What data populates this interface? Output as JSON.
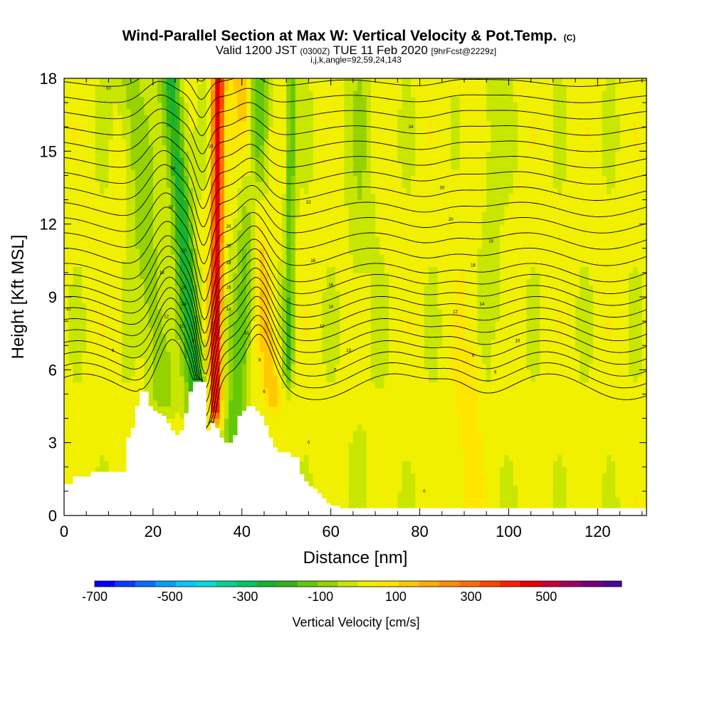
{
  "chart_data": {
    "type": "heatmap",
    "title": "Wind-Parallel Section at Max W: Vertical Velocity & Pot.Temp.",
    "title_suffix": "(C)",
    "subtitle_parts": [
      "Valid 1200 JST ",
      "(0300Z)",
      " TUE 11 Feb 2020 ",
      "[9hrFcst@2229z]"
    ],
    "subtitle2": "i,j,k,angle=92,59,24,143",
    "xlabel": "Distance [nm]",
    "ylabel": "Height [Kft MSL]",
    "xlim": [
      0,
      131
    ],
    "ylim": [
      0,
      18
    ],
    "xticks": [
      0,
      20,
      40,
      60,
      80,
      100,
      120
    ],
    "yticks": [
      0,
      3,
      6,
      9,
      12,
      15,
      18
    ],
    "colorbar": {
      "label": "Vertical Velocity [cm/s]",
      "min": -700,
      "max": 700,
      "tick_values": [
        -700,
        -500,
        -300,
        -100,
        100,
        300,
        500
      ],
      "colors": [
        "#0000ff",
        "#0a3cff",
        "#0a6eff",
        "#00a0ff",
        "#00c8ff",
        "#00dcdc",
        "#00d296",
        "#00c864",
        "#14b432",
        "#32b414",
        "#64c80a",
        "#96d200",
        "#c8e600",
        "#f0f000",
        "#ffe600",
        "#ffc800",
        "#ffaa00",
        "#ff8c00",
        "#ff6e00",
        "#ff4600",
        "#ff1e00",
        "#e60000",
        "#c8003c",
        "#a00064",
        "#780078",
        "#500096"
      ]
    },
    "velocity_features": [
      {
        "x": 34,
        "y_bottom": 4.5,
        "y_top": 18,
        "lean": 0.05,
        "half_width": 1.3,
        "value": 450
      },
      {
        "x": 30,
        "y_bottom": 4.5,
        "y_top": 18,
        "lean": -0.45,
        "half_width": 2.2,
        "value": -270
      },
      {
        "x": 47,
        "y_bottom": 5,
        "y_top": 18,
        "lean": -0.55,
        "half_width": 1.9,
        "value": 140
      },
      {
        "x": 38,
        "y_bottom": 2.5,
        "y_top": 18,
        "lean": 0.4,
        "half_width": 2.5,
        "value": -160
      },
      {
        "x": 50.5,
        "y_bottom": 6,
        "y_top": 18,
        "lean": 0.05,
        "half_width": 1.1,
        "value": -170
      },
      {
        "x": 22,
        "y_bottom": 5,
        "y_top": 18,
        "lean": -0.55,
        "half_width": 3,
        "value": -120
      }
    ],
    "terrain_x": [
      0,
      1,
      2,
      3,
      4,
      5,
      6,
      7,
      8,
      9,
      10,
      11,
      12,
      13,
      14,
      15,
      16,
      17,
      18,
      19,
      20,
      21,
      22,
      23,
      24,
      25,
      26,
      27,
      28,
      29,
      30,
      31,
      32,
      33,
      34,
      35,
      36,
      37,
      38,
      39,
      40,
      41,
      42,
      43,
      44,
      45,
      46,
      47,
      48,
      49,
      50,
      51,
      52,
      53,
      54,
      55,
      56,
      57,
      58,
      59,
      60,
      61,
      62,
      63,
      64,
      131
    ],
    "terrain_y": [
      1.3,
      1.3,
      1.6,
      1.6,
      1.6,
      1.6,
      1.8,
      1.8,
      1.8,
      1.8,
      1.8,
      1.8,
      1.8,
      1.8,
      3.2,
      3.6,
      4.5,
      5.1,
      5.1,
      4.5,
      4.3,
      4.2,
      4.1,
      3.8,
      3.5,
      3.3,
      3.5,
      4.2,
      5.1,
      5.5,
      5.5,
      5.5,
      3.5,
      3.8,
      3.6,
      3.2,
      3.0,
      3.0,
      3.3,
      4.1,
      4.3,
      4.5,
      4.5,
      4.3,
      4.1,
      3.7,
      3.2,
      2.8,
      2.6,
      2.6,
      2.6,
      2.4,
      2.4,
      1.7,
      1.4,
      1.2,
      1.1,
      0.9,
      0.7,
      0.5,
      0.4,
      0.4,
      0.3,
      0.3,
      0.3,
      0.3
    ],
    "theta_levels": [
      0,
      2,
      4,
      6,
      8,
      10,
      12,
      14,
      16,
      18,
      20,
      22,
      24,
      26,
      28,
      30,
      32,
      34,
      36,
      38,
      40,
      42,
      44,
      46,
      48,
      50,
      52,
      54
    ],
    "contour_labels": [
      {
        "x": 10,
        "y": 17.6,
        "text": "50"
      },
      {
        "x": 24.5,
        "y": 14.3,
        "text": "34"
      },
      {
        "x": 33,
        "y": 15.2,
        "text": "28"
      },
      {
        "x": 55,
        "y": 12.9,
        "text": "32"
      },
      {
        "x": 78,
        "y": 16.0,
        "text": "34"
      },
      {
        "x": 85,
        "y": 13.5,
        "text": "30"
      },
      {
        "x": 87,
        "y": 12.2,
        "text": "20"
      },
      {
        "x": 96,
        "y": 11.3,
        "text": "18"
      },
      {
        "x": 92,
        "y": 10.3,
        "text": "16"
      },
      {
        "x": 56,
        "y": 10.5,
        "text": "16"
      },
      {
        "x": 60,
        "y": 9.5,
        "text": "16"
      },
      {
        "x": 60,
        "y": 8.6,
        "text": "14"
      },
      {
        "x": 58,
        "y": 7.8,
        "text": "12"
      },
      {
        "x": 94,
        "y": 8.7,
        "text": "14"
      },
      {
        "x": 88,
        "y": 8.4,
        "text": "12"
      },
      {
        "x": 102,
        "y": 7.2,
        "text": "10"
      },
      {
        "x": 92,
        "y": 6.6,
        "text": "8"
      },
      {
        "x": 64,
        "y": 6.8,
        "text": "10"
      },
      {
        "x": 61,
        "y": 6.0,
        "text": "6"
      },
      {
        "x": 97,
        "y": 5.9,
        "text": "6"
      },
      {
        "x": 11,
        "y": 6.8,
        "text": "6"
      },
      {
        "x": 1,
        "y": 8.5,
        "text": "10"
      },
      {
        "x": 23,
        "y": 8.2,
        "text": "12"
      },
      {
        "x": 22,
        "y": 10.0,
        "text": "18"
      },
      {
        "x": 27,
        "y": 10.9,
        "text": "20"
      },
      {
        "x": 24,
        "y": 12.7,
        "text": "30"
      },
      {
        "x": 27,
        "y": 9.4,
        "text": "16"
      },
      {
        "x": 27,
        "y": 8.7,
        "text": "14"
      },
      {
        "x": 26.5,
        "y": 7.8,
        "text": "10"
      },
      {
        "x": 29,
        "y": 7.2,
        "text": "8"
      },
      {
        "x": 37,
        "y": 11.9,
        "text": "20"
      },
      {
        "x": 37,
        "y": 11.1,
        "text": "20"
      },
      {
        "x": 37,
        "y": 10.4,
        "text": "18"
      },
      {
        "x": 37,
        "y": 9.4,
        "text": "16"
      },
      {
        "x": 37,
        "y": 8.5,
        "text": "14"
      },
      {
        "x": 41,
        "y": 7.5,
        "text": "10"
      },
      {
        "x": 44,
        "y": 6.4,
        "text": "8"
      },
      {
        "x": 45,
        "y": 5.1,
        "text": "6"
      },
      {
        "x": 55,
        "y": 3.0,
        "text": "0"
      },
      {
        "x": 81,
        "y": 1.0,
        "text": "0"
      }
    ]
  }
}
